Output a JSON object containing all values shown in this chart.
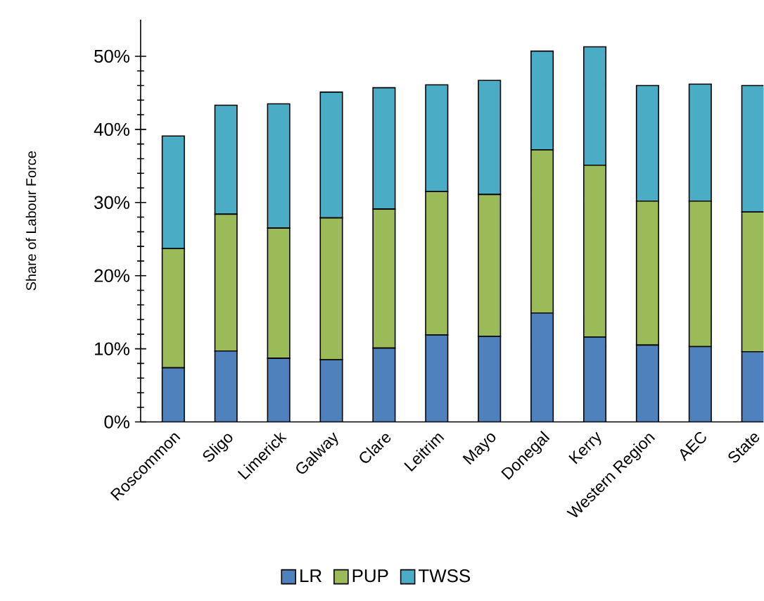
{
  "chart_data": {
    "type": "bar",
    "stacked": true,
    "ylabel": "Share of Labour Force",
    "categories": [
      "Roscommon",
      "Sligo",
      "Limerick",
      "Galway",
      "Clare",
      "Leitrim",
      "Mayo",
      "Donegal",
      "Kerry",
      "Western Region",
      "AEC",
      "State"
    ],
    "series": [
      {
        "name": "LR",
        "color": "#4f81bd",
        "values": [
          7.4,
          9.7,
          8.7,
          8.5,
          10.1,
          11.9,
          11.7,
          14.9,
          11.6,
          10.5,
          10.3,
          9.6
        ]
      },
      {
        "name": "PUP",
        "color": "#9bbb59",
        "values": [
          16.3,
          18.7,
          17.8,
          19.4,
          19.0,
          19.6,
          19.4,
          22.3,
          23.5,
          19.7,
          19.9,
          19.1
        ]
      },
      {
        "name": "TWSS",
        "color": "#4bacc6",
        "values": [
          15.4,
          14.9,
          17.0,
          17.2,
          16.6,
          14.6,
          15.6,
          13.5,
          16.2,
          15.8,
          16.0,
          17.3
        ]
      }
    ],
    "ylim": [
      0,
      55
    ],
    "yticks": [
      {
        "value": 0,
        "label": "0%"
      },
      {
        "value": 10,
        "label": "10%"
      },
      {
        "value": 20,
        "label": "20%"
      },
      {
        "value": 30,
        "label": "30%"
      },
      {
        "value": 40,
        "label": "40%"
      },
      {
        "value": 50,
        "label": "50%"
      }
    ],
    "grid": false,
    "legend": "bottom"
  }
}
